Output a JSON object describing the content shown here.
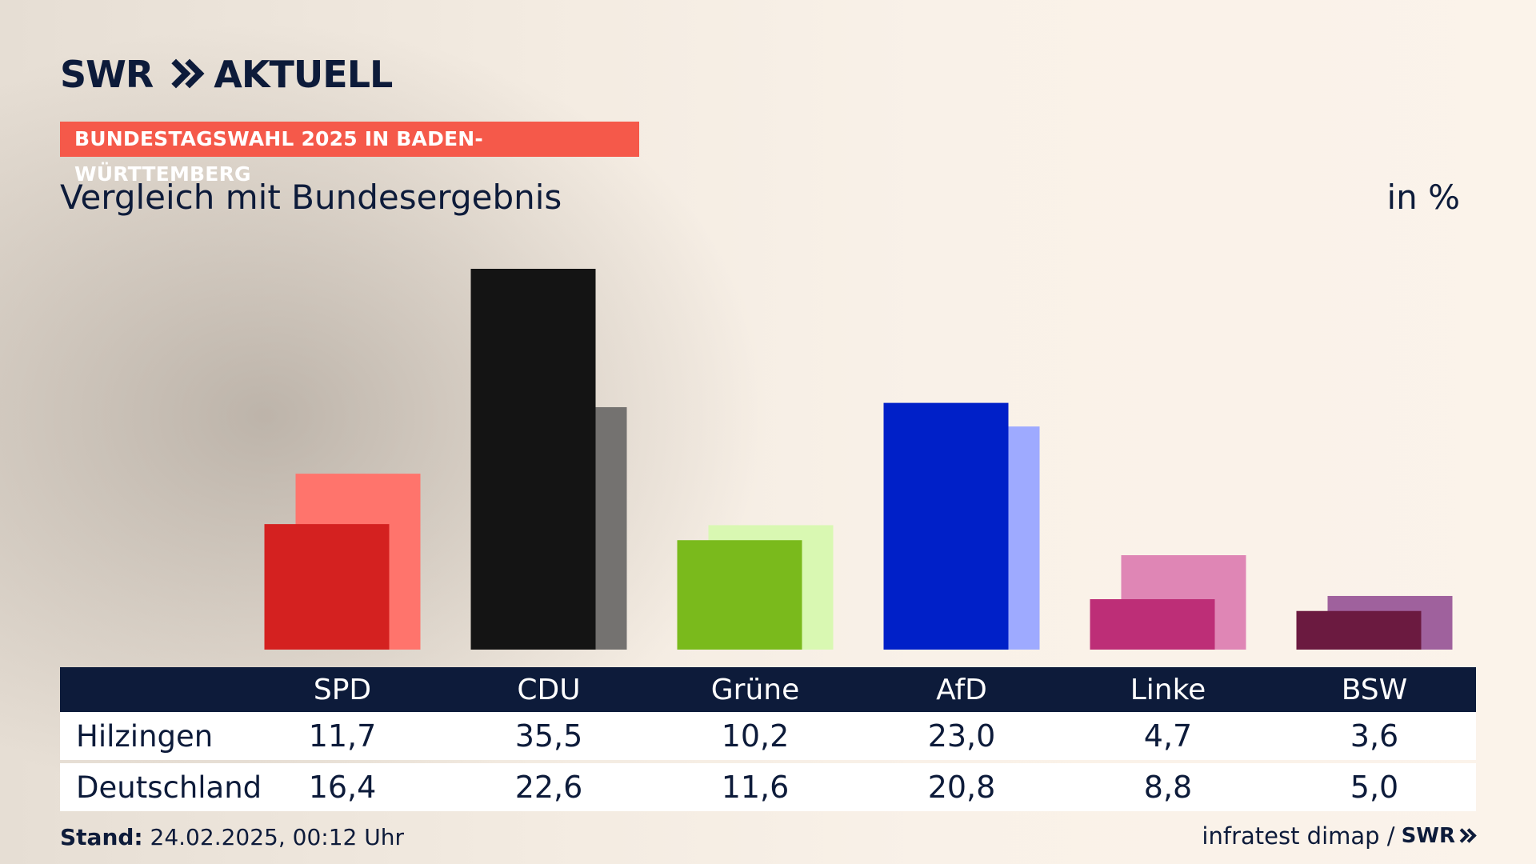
{
  "header": {
    "logo_text": "SWR",
    "logo_suffix": "AKTUELL",
    "banner": "BUNDESTAGSWAHL 2025 IN BADEN-WÜRTTEMBERG",
    "subtitle": "Vergleich mit Bundesergebnis",
    "unit": "in %"
  },
  "chart_data": {
    "type": "bar",
    "categories": [
      "SPD",
      "CDU",
      "Grüne",
      "AfD",
      "Linke",
      "BSW"
    ],
    "series": [
      {
        "name": "Hilzingen",
        "values": [
          11.7,
          35.5,
          10.2,
          23.0,
          4.7,
          3.6
        ],
        "colors": [
          "#d42120",
          "#141414",
          "#7aba1c",
          "#0020c8",
          "#bd2e77",
          "#6b1a40"
        ]
      },
      {
        "name": "Deutschland",
        "values": [
          16.4,
          22.6,
          11.6,
          20.8,
          8.8,
          5.0
        ],
        "colors": [
          "#ff746c",
          "#747270",
          "#d9f8b2",
          "#9eaaff",
          "#df86b5",
          "#9f619d"
        ]
      }
    ],
    "ylim": [
      0,
      35.5
    ],
    "grid": false
  },
  "table": {
    "headers": [
      "SPD",
      "CDU",
      "Grüne",
      "AfD",
      "Linke",
      "BSW"
    ],
    "rows": [
      {
        "label": "Hilzingen",
        "values": [
          "11,7",
          "35,5",
          "10,2",
          "23,0",
          "4,7",
          "3,6"
        ]
      },
      {
        "label": "Deutschland",
        "values": [
          "16,4",
          "22,6",
          "11,6",
          "20,8",
          "8,8",
          "5,0"
        ]
      }
    ]
  },
  "footer": {
    "stand_label": "Stand:",
    "stand_value": "24.02.2025, 00:12 Uhr",
    "source": "infratest dimap /",
    "source_logo": "SWR"
  },
  "colors": {
    "navy": "#0d1b3a",
    "banner": "#f5594a"
  }
}
